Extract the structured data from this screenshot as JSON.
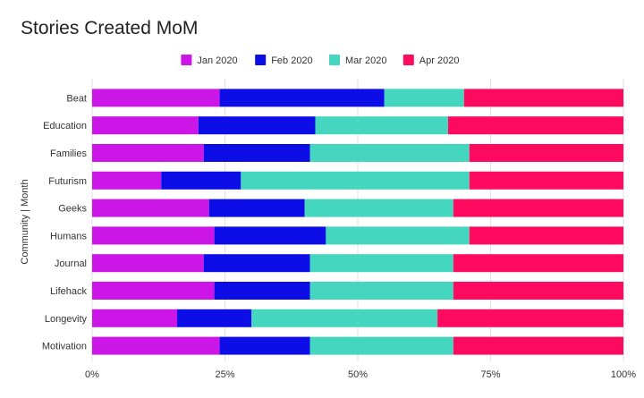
{
  "chart_data": {
    "type": "bar",
    "orientation": "horizontal",
    "stacked": "percent",
    "title": "Stories Created MoM",
    "xlabel": "",
    "ylabel": "Community | Month",
    "xlim": [
      0,
      1
    ],
    "x_ticks": [
      "0%",
      "25%",
      "50%",
      "75%",
      "100%"
    ],
    "grid": true,
    "legend_position": "top",
    "categories": [
      "Beat",
      "Education",
      "Families",
      "Futurism",
      "Geeks",
      "Humans",
      "Journal",
      "Lifehack",
      "Longevity",
      "Motivation"
    ],
    "series": [
      {
        "name": "Jan 2020",
        "color": "#cc16e8",
        "values": [
          0.24,
          0.2,
          0.21,
          0.13,
          0.22,
          0.23,
          0.21,
          0.23,
          0.16,
          0.24
        ]
      },
      {
        "name": "Feb 2020",
        "color": "#0d0de8",
        "values": [
          0.31,
          0.22,
          0.2,
          0.15,
          0.18,
          0.21,
          0.2,
          0.18,
          0.14,
          0.17
        ]
      },
      {
        "name": "Mar 2020",
        "color": "#44d6bf",
        "values": [
          0.15,
          0.25,
          0.3,
          0.43,
          0.28,
          0.27,
          0.27,
          0.27,
          0.35,
          0.27
        ]
      },
      {
        "name": "Apr 2020",
        "color": "#ff0a5e",
        "values": [
          0.3,
          0.33,
          0.29,
          0.29,
          0.32,
          0.29,
          0.32,
          0.32,
          0.35,
          0.32
        ]
      }
    ]
  }
}
